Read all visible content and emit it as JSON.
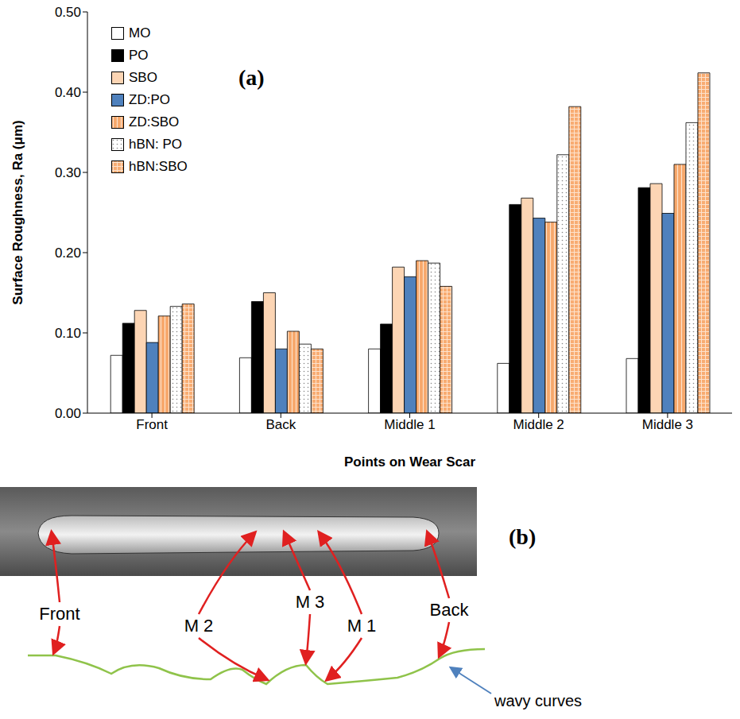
{
  "chart_data": {
    "type": "bar",
    "annotations": [
      "(a)"
    ],
    "xlabel": "Points on Wear Scar",
    "ylabel": "Surface Roughness, Ra (μm)",
    "categories": [
      "Front",
      "Back",
      "Middle 1",
      "Middle 2",
      "Middle 3"
    ],
    "series": [
      {
        "name": "MO",
        "color": "#ffffff",
        "values": [
          0.072,
          0.069,
          0.08,
          0.062,
          0.068
        ]
      },
      {
        "name": "PO",
        "color": "#000000",
        "values": [
          0.112,
          0.139,
          0.111,
          0.26,
          0.281
        ]
      },
      {
        "name": "SBO",
        "color": "#fcd5b4",
        "values": [
          0.128,
          0.15,
          0.182,
          0.268,
          0.286
        ]
      },
      {
        "name": "ZD:PO",
        "color": "#4f81bd",
        "values": [
          0.088,
          0.08,
          0.17,
          0.243,
          0.249
        ]
      },
      {
        "name": "ZD:SBO",
        "color": "#f7a76a",
        "values": [
          0.121,
          0.102,
          0.19,
          0.238,
          0.31
        ]
      },
      {
        "name": "hBN: PO",
        "color": "#ffffff",
        "values": [
          0.133,
          0.086,
          0.187,
          0.322,
          0.362
        ]
      },
      {
        "name": "hBN:SBO",
        "color": "#f8ac72",
        "values": [
          0.136,
          0.08,
          0.158,
          0.382,
          0.424
        ]
      }
    ],
    "ylim": [
      0,
      0.5
    ],
    "yticks": [
      {
        "value": 0,
        "label": "0.00"
      },
      {
        "value": 0.1,
        "label": "0.10"
      },
      {
        "value": 0.2,
        "label": "0.20"
      },
      {
        "value": 0.3,
        "label": "0.30"
      },
      {
        "value": 0.4,
        "label": "0.40"
      },
      {
        "value": 0.5,
        "label": "0.50"
      }
    ],
    "grid": false,
    "legend": "upper left"
  },
  "diagram": {
    "label": "(b)",
    "points": [
      "Front",
      "M 2",
      "M 3",
      "M 1",
      "Back"
    ],
    "curve_label": "wavy curves"
  }
}
